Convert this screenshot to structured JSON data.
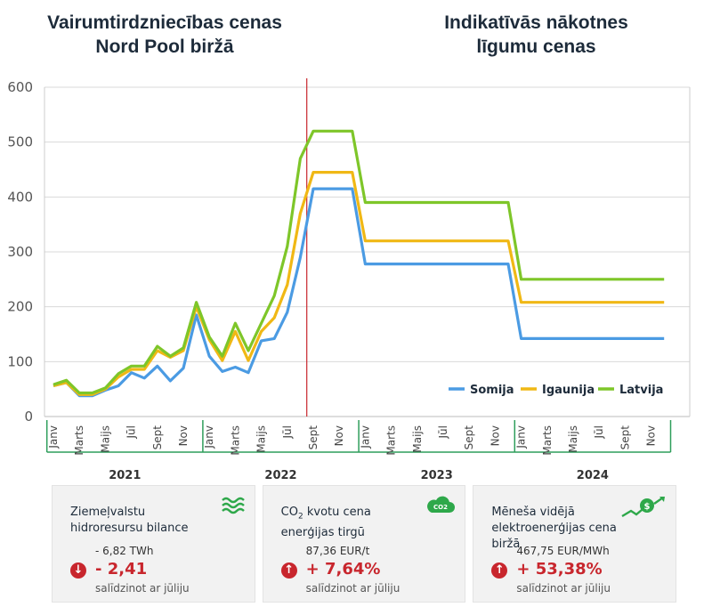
{
  "titles": {
    "left_line1": "Vairumtirdzniecības cenas",
    "left_line2": "Nord Pool biržā",
    "right_line1": "Indikatīvās nākotnes",
    "right_line2": "līgumu cenas"
  },
  "chart_data": {
    "type": "line",
    "ylim": [
      0,
      600
    ],
    "yticks": [
      0,
      100,
      200,
      300,
      400,
      500,
      600
    ],
    "x_month_labels": [
      "Janv",
      "Marts",
      "Maijs",
      "Jūl",
      "Sept",
      "Nov"
    ],
    "years": [
      "2021",
      "2022",
      "2023",
      "2024"
    ],
    "divider_after": "Aug 2022",
    "legend_position": "bottom-right",
    "series": [
      {
        "name": "Somija",
        "color": "#4b9be3",
        "values": [
          56,
          62,
          38,
          38,
          48,
          56,
          80,
          70,
          92,
          65,
          88,
          185,
          110,
          82,
          90,
          80,
          138,
          142,
          190,
          290,
          415,
          415,
          415,
          415,
          278,
          278,
          278,
          278,
          278,
          278,
          278,
          278,
          278,
          278,
          278,
          278,
          142,
          142,
          142,
          142,
          142,
          142,
          142,
          142,
          142,
          142,
          142,
          142
        ]
      },
      {
        "name": "Igaunija",
        "color": "#f0b815",
        "values": [
          56,
          62,
          40,
          40,
          50,
          72,
          86,
          86,
          120,
          108,
          120,
          200,
          140,
          102,
          155,
          102,
          155,
          180,
          240,
          370,
          445,
          445,
          445,
          445,
          320,
          320,
          320,
          320,
          320,
          320,
          320,
          320,
          320,
          320,
          320,
          320,
          208,
          208,
          208,
          208,
          208,
          208,
          208,
          208,
          208,
          208,
          208,
          208
        ]
      },
      {
        "name": "Latvija",
        "color": "#7ec629",
        "values": [
          58,
          66,
          43,
          43,
          52,
          78,
          92,
          92,
          128,
          110,
          125,
          208,
          145,
          110,
          170,
          120,
          170,
          220,
          310,
          470,
          520,
          520,
          520,
          520,
          390,
          390,
          390,
          390,
          390,
          390,
          390,
          390,
          390,
          390,
          390,
          390,
          250,
          250,
          250,
          250,
          250,
          250,
          250,
          250,
          250,
          250,
          250,
          250
        ]
      }
    ]
  },
  "cards": [
    {
      "title": "Ziemeļvalstu hidroresursu bilance",
      "icon": "waves-icon",
      "ref_value": "- 6,82 TWh",
      "direction": "down",
      "change": "- 2,41",
      "note": "salīdzinot ar jūliju"
    },
    {
      "title_prefix": "CO",
      "title_sub": "2",
      "title_rest": " kvotu cena enerģijas tirgū",
      "icon": "co2-cloud-icon",
      "icon_label": "CO2",
      "ref_value": "87,36 EUR/t",
      "direction": "up",
      "change": "+ 7,64%",
      "note": "salīdzinot ar jūliju"
    },
    {
      "title": "Mēneša vidējā elektroenerģijas cena biržā",
      "icon": "money-growth-icon",
      "ref_value": "467,75 EUR/MWh",
      "direction": "up",
      "change": "+ 53,38%",
      "note": "salīdzinot ar jūliju"
    }
  ],
  "colors": {
    "divider": "#c8262d",
    "axis_green": "#2e9e5b",
    "grid": "#d9d9d9",
    "negative": "#c8262d"
  }
}
